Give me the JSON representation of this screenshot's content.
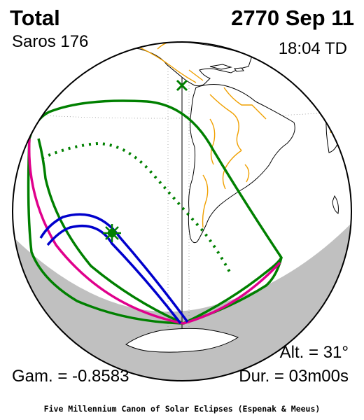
{
  "header": {
    "eclipse_type": "Total",
    "date": "2770 Sep 11",
    "saros": "Saros 176",
    "time": "18:04 TD"
  },
  "stats": {
    "gamma": "Gam. = -0.8583",
    "altitude": "Alt. = 31°",
    "duration": "Dur. = 03m00s"
  },
  "footer": "Five Millennium Canon of Solar Eclipses (Espenak & Meeus)",
  "colors": {
    "penumbra_limit": "#008000",
    "central_line": "#008000",
    "umbral_path": "#0000cc",
    "contact_curve": "#e0008c",
    "borders": "#f0a000",
    "night_shade": "#c0c0c0"
  },
  "markers": {
    "greatest_eclipse": "green-star",
    "sub_solar_point": "green-cross"
  }
}
